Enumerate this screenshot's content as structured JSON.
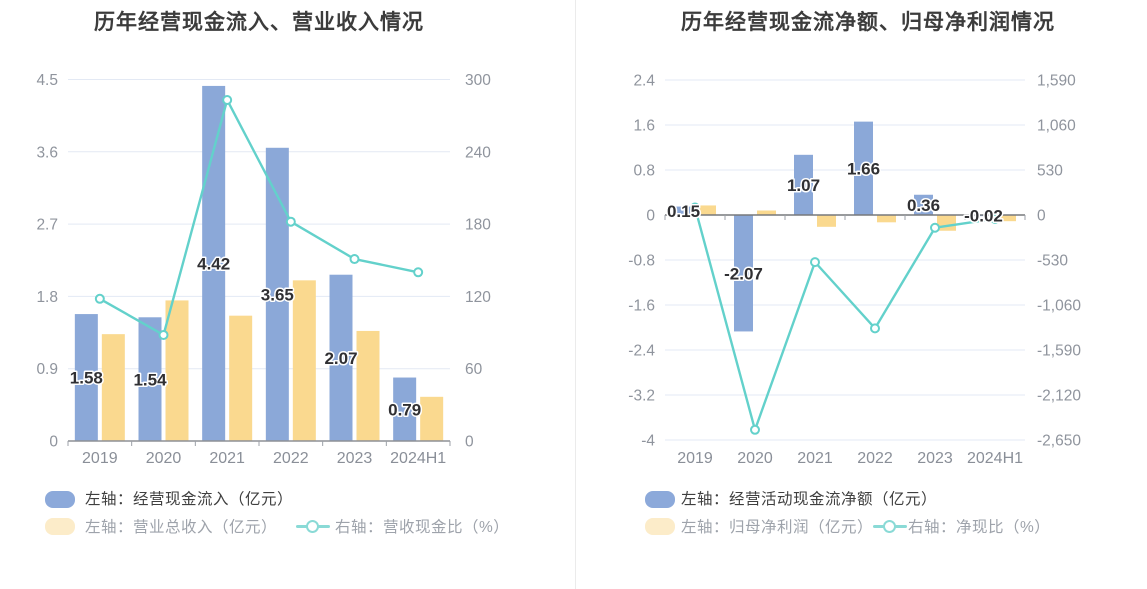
{
  "chart_data": [
    {
      "type": "bar-line",
      "title": "历年经营现金流入、营业收入情况",
      "categories": [
        "2019",
        "2020",
        "2021",
        "2022",
        "2023",
        "2024H1"
      ],
      "left_axis": {
        "min": 0,
        "max": 4.5,
        "ticks": [
          0,
          0.9,
          1.8,
          2.7,
          3.6,
          4.5
        ],
        "tick_labels": [
          "0",
          "0.9",
          "1.8",
          "2.7",
          "3.6",
          "4.5"
        ]
      },
      "right_axis": {
        "min": 0,
        "max": 300,
        "ticks": [
          0,
          60,
          120,
          180,
          240,
          300
        ],
        "tick_labels": [
          "0",
          "60",
          "120",
          "180",
          "240",
          "300"
        ]
      },
      "grid": true,
      "legend_position": "bottom",
      "series": [
        {
          "name": "左轴：经营现金流入（亿元）",
          "type": "bar",
          "axis": "left",
          "color": "#8BA8D8",
          "legend_color": "#8CA9DA",
          "values": [
            1.58,
            1.54,
            4.42,
            3.65,
            2.07,
            0.79
          ],
          "labels": [
            "1.58",
            "1.54",
            "4.42",
            "3.65",
            "2.07",
            "0.79"
          ],
          "show_labels": true
        },
        {
          "name": "左轴：营业总收入（亿元）",
          "type": "bar",
          "axis": "left",
          "color": "#FAD98F",
          "legend_color": "#FCECC9",
          "values": [
            1.33,
            1.75,
            1.56,
            2.0,
            1.37,
            0.55
          ],
          "show_labels": false
        },
        {
          "name": "右轴：营收现金比（%）",
          "type": "line",
          "axis": "right",
          "color": "#63D1CB",
          "legend_color": "#8ADAD6",
          "values": [
            118,
            88,
            283,
            182,
            151,
            140
          ],
          "show_labels": false
        }
      ]
    },
    {
      "type": "bar-line",
      "title": "历年经营现金流净额、归母净利润情况",
      "categories": [
        "2019",
        "2020",
        "2021",
        "2022",
        "2023",
        "2024H1"
      ],
      "left_axis": {
        "min": -4,
        "max": 2.4,
        "ticks": [
          -4,
          -3.2,
          -2.4,
          -1.6,
          -0.8,
          0,
          0.8,
          1.6,
          2.4
        ],
        "tick_labels": [
          "-4",
          "-3.2",
          "-2.4",
          "-1.6",
          "-0.8",
          "0",
          "0.8",
          "1.6",
          "2.4"
        ]
      },
      "right_axis": {
        "min": -2650,
        "max": 1590,
        "ticks": [
          -2650,
          -2120,
          -1590,
          -1060,
          -530,
          0,
          530,
          1060,
          1590
        ],
        "tick_labels": [
          "-2,650",
          "-2,120",
          "-1,590",
          "-1,060",
          "-530",
          "0",
          "530",
          "1,060",
          "1,590"
        ]
      },
      "grid": true,
      "legend_position": "bottom",
      "series": [
        {
          "name": "左轴：经营活动现金流净额（亿元）",
          "type": "bar",
          "axis": "left",
          "color": "#8BA8D8",
          "legend_color": "#8CA9DA",
          "values": [
            0.15,
            -2.07,
            1.07,
            1.66,
            0.36,
            -0.02
          ],
          "labels": [
            "0.15",
            "-2.07",
            "1.07",
            "1.66",
            "0.36",
            "-0.02"
          ],
          "show_labels": true
        },
        {
          "name": "左轴：归母净利润（亿元）",
          "type": "bar",
          "axis": "left",
          "color": "#FAD98F",
          "legend_color": "#FCECC9",
          "values": [
            0.17,
            0.08,
            -0.21,
            -0.13,
            -0.28,
            -0.11
          ],
          "show_labels": false
        },
        {
          "name": "右轴：净现比（%）",
          "type": "line",
          "axis": "right",
          "color": "#63D1CB",
          "legend_color": "#8ADAD6",
          "values": [
            88,
            -2530,
            -555,
            -1335,
            -150,
            -45
          ],
          "show_labels": false
        }
      ]
    }
  ]
}
